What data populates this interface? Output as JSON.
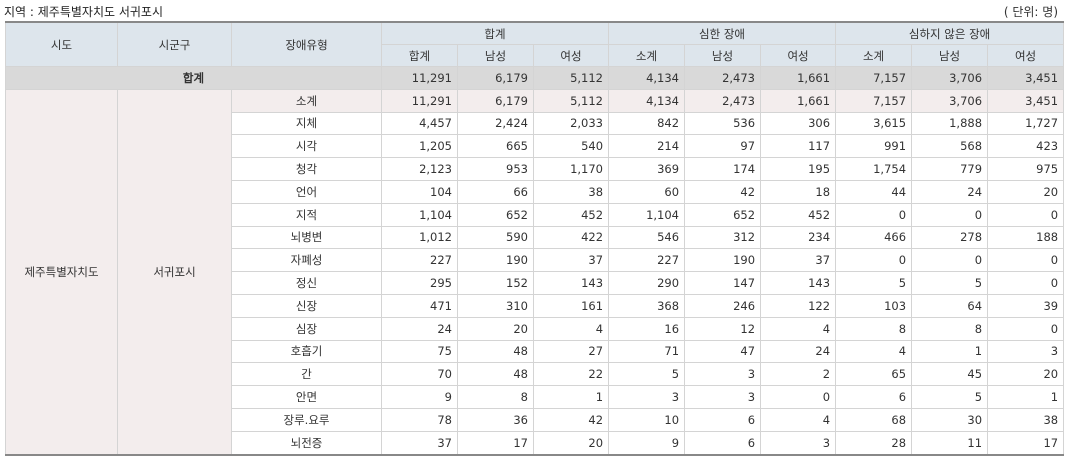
{
  "header": {
    "region_label": "지역 : 제주특별자치도 서귀포시",
    "unit_label": "( 단위: 명)"
  },
  "columns": {
    "sido": "시도",
    "sigungu": "시군구",
    "type": "장애유형",
    "groups": [
      "합계",
      "심한 장애",
      "심하지 않은 장애"
    ],
    "sub": [
      [
        "합계",
        "남성",
        "여성"
      ],
      [
        "소계",
        "남성",
        "여성"
      ],
      [
        "소계",
        "남성",
        "여성"
      ]
    ]
  },
  "total_row": {
    "label": "합계",
    "values": [
      "11,291",
      "6,179",
      "5,112",
      "4,134",
      "2,473",
      "1,661",
      "7,157",
      "3,706",
      "3,451"
    ]
  },
  "sido": "제주특별자치도",
  "sigungu": "서귀포시",
  "rows": [
    {
      "type": "소계",
      "values": [
        "11,291",
        "6,179",
        "5,112",
        "4,134",
        "2,473",
        "1,661",
        "7,157",
        "3,706",
        "3,451"
      ]
    },
    {
      "type": "지체",
      "values": [
        "4,457",
        "2,424",
        "2,033",
        "842",
        "536",
        "306",
        "3,615",
        "1,888",
        "1,727"
      ]
    },
    {
      "type": "시각",
      "values": [
        "1,205",
        "665",
        "540",
        "214",
        "97",
        "117",
        "991",
        "568",
        "423"
      ]
    },
    {
      "type": "청각",
      "values": [
        "2,123",
        "953",
        "1,170",
        "369",
        "174",
        "195",
        "1,754",
        "779",
        "975"
      ]
    },
    {
      "type": "언어",
      "values": [
        "104",
        "66",
        "38",
        "60",
        "42",
        "18",
        "44",
        "24",
        "20"
      ]
    },
    {
      "type": "지적",
      "values": [
        "1,104",
        "652",
        "452",
        "1,104",
        "652",
        "452",
        "0",
        "0",
        "0"
      ]
    },
    {
      "type": "뇌병변",
      "values": [
        "1,012",
        "590",
        "422",
        "546",
        "312",
        "234",
        "466",
        "278",
        "188"
      ]
    },
    {
      "type": "자폐성",
      "values": [
        "227",
        "190",
        "37",
        "227",
        "190",
        "37",
        "0",
        "0",
        "0"
      ]
    },
    {
      "type": "정신",
      "values": [
        "295",
        "152",
        "143",
        "290",
        "147",
        "143",
        "5",
        "5",
        "0"
      ]
    },
    {
      "type": "신장",
      "values": [
        "471",
        "310",
        "161",
        "368",
        "246",
        "122",
        "103",
        "64",
        "39"
      ]
    },
    {
      "type": "심장",
      "values": [
        "24",
        "20",
        "4",
        "16",
        "12",
        "4",
        "8",
        "8",
        "0"
      ]
    },
    {
      "type": "호흡기",
      "values": [
        "75",
        "48",
        "27",
        "71",
        "47",
        "24",
        "4",
        "1",
        "3"
      ]
    },
    {
      "type": "간",
      "values": [
        "70",
        "48",
        "22",
        "5",
        "3",
        "2",
        "65",
        "45",
        "20"
      ]
    },
    {
      "type": "안면",
      "values": [
        "9",
        "8",
        "1",
        "3",
        "3",
        "0",
        "6",
        "5",
        "1"
      ]
    },
    {
      "type": "장루.요루",
      "values": [
        "78",
        "36",
        "42",
        "10",
        "6",
        "4",
        "68",
        "30",
        "38"
      ]
    },
    {
      "type": "뇌전증",
      "values": [
        "37",
        "17",
        "20",
        "9",
        "6",
        "3",
        "28",
        "11",
        "17"
      ]
    }
  ]
}
